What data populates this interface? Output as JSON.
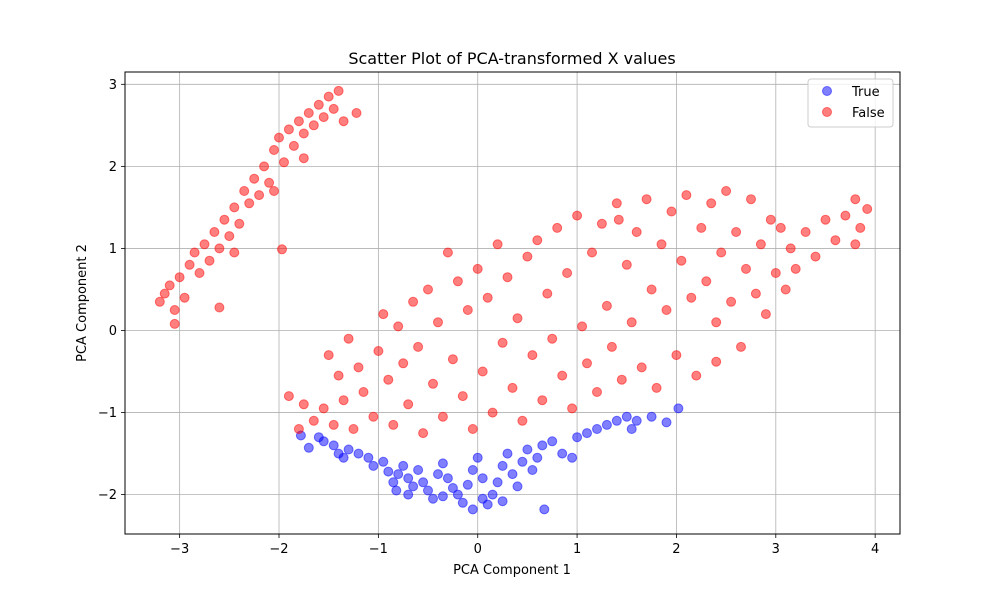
{
  "chart_data": {
    "type": "scatter",
    "title": "Scatter Plot of PCA-transformed X values",
    "xlabel": "PCA Component 1",
    "ylabel": "PCA Component 2",
    "xlim": [
      -3.55,
      4.25
    ],
    "ylim": [
      -2.48,
      3.15
    ],
    "xticks": [
      -3,
      -2,
      -1,
      0,
      1,
      2,
      3,
      4
    ],
    "yticks": [
      -2,
      -1,
      0,
      1,
      2,
      3
    ],
    "grid": true,
    "legend_position": "top-right",
    "marker_alpha": 0.5,
    "series": [
      {
        "name": "True",
        "color": "#0000ff",
        "points": [
          [
            -1.7,
            -1.43
          ],
          [
            -1.78,
            -1.28
          ],
          [
            -1.6,
            -1.3
          ],
          [
            -1.55,
            -1.35
          ],
          [
            -1.45,
            -1.4
          ],
          [
            -1.4,
            -1.5
          ],
          [
            -1.35,
            -1.55
          ],
          [
            -1.3,
            -1.45
          ],
          [
            -1.2,
            -1.5
          ],
          [
            -1.1,
            -1.55
          ],
          [
            -1.05,
            -1.65
          ],
          [
            -0.95,
            -1.6
          ],
          [
            -0.9,
            -1.72
          ],
          [
            -0.85,
            -1.85
          ],
          [
            -0.82,
            -1.95
          ],
          [
            -0.8,
            -1.75
          ],
          [
            -0.75,
            -1.65
          ],
          [
            -0.7,
            -1.8
          ],
          [
            -0.65,
            -1.9
          ],
          [
            -0.6,
            -1.7
          ],
          [
            -0.55,
            -1.85
          ],
          [
            -0.5,
            -1.95
          ],
          [
            -0.45,
            -2.05
          ],
          [
            -0.4,
            -1.75
          ],
          [
            -0.35,
            -1.62
          ],
          [
            -0.3,
            -1.8
          ],
          [
            -0.25,
            -1.92
          ],
          [
            -0.2,
            -2.0
          ],
          [
            -0.15,
            -2.1
          ],
          [
            -0.1,
            -1.88
          ],
          [
            -0.05,
            -1.7
          ],
          [
            0.0,
            -1.55
          ],
          [
            0.05,
            -1.8
          ],
          [
            0.1,
            -2.12
          ],
          [
            0.15,
            -2.0
          ],
          [
            0.2,
            -1.85
          ],
          [
            0.25,
            -1.65
          ],
          [
            0.3,
            -1.5
          ],
          [
            0.35,
            -1.75
          ],
          [
            0.4,
            -1.9
          ],
          [
            0.45,
            -1.6
          ],
          [
            0.5,
            -1.45
          ],
          [
            0.55,
            -1.7
          ],
          [
            0.6,
            -1.55
          ],
          [
            0.65,
            -1.4
          ],
          [
            0.67,
            -2.18
          ],
          [
            0.75,
            -1.35
          ],
          [
            0.85,
            -1.5
          ],
          [
            0.95,
            -1.55
          ],
          [
            1.0,
            -1.3
          ],
          [
            1.1,
            -1.25
          ],
          [
            1.2,
            -1.2
          ],
          [
            1.3,
            -1.15
          ],
          [
            1.4,
            -1.1
          ],
          [
            1.5,
            -1.05
          ],
          [
            1.6,
            -1.1
          ],
          [
            1.75,
            -1.05
          ],
          [
            1.9,
            -1.12
          ],
          [
            2.02,
            -0.95
          ],
          [
            1.55,
            -1.2
          ],
          [
            -0.7,
            -2.0
          ],
          [
            -0.35,
            -2.02
          ],
          [
            -0.05,
            -2.18
          ],
          [
            0.05,
            -2.05
          ],
          [
            0.25,
            -2.08
          ]
        ]
      },
      {
        "name": "False",
        "color": "#ff0000",
        "points": [
          [
            -3.2,
            0.35
          ],
          [
            -3.15,
            0.45
          ],
          [
            -3.1,
            0.55
          ],
          [
            -3.05,
            0.25
          ],
          [
            -3.0,
            0.65
          ],
          [
            -2.95,
            0.4
          ],
          [
            -2.9,
            0.8
          ],
          [
            -2.85,
            0.95
          ],
          [
            -2.8,
            0.7
          ],
          [
            -2.75,
            1.05
          ],
          [
            -2.7,
            0.85
          ],
          [
            -2.65,
            1.2
          ],
          [
            -2.6,
            1.0
          ],
          [
            -2.55,
            1.35
          ],
          [
            -2.5,
            1.15
          ],
          [
            -2.45,
            1.5
          ],
          [
            -2.4,
            1.3
          ],
          [
            -2.35,
            1.7
          ],
          [
            -2.3,
            1.55
          ],
          [
            -2.25,
            1.85
          ],
          [
            -2.2,
            1.65
          ],
          [
            -2.15,
            2.0
          ],
          [
            -2.1,
            1.8
          ],
          [
            -2.05,
            2.2
          ],
          [
            -2.0,
            2.35
          ],
          [
            -1.95,
            2.05
          ],
          [
            -1.9,
            2.45
          ],
          [
            -1.85,
            2.25
          ],
          [
            -1.8,
            2.55
          ],
          [
            -1.75,
            2.4
          ],
          [
            -1.7,
            2.65
          ],
          [
            -1.65,
            2.5
          ],
          [
            -1.6,
            2.75
          ],
          [
            -1.55,
            2.6
          ],
          [
            -1.5,
            2.85
          ],
          [
            -1.45,
            2.7
          ],
          [
            -1.4,
            2.92
          ],
          [
            -1.35,
            2.55
          ],
          [
            -1.22,
            2.65
          ],
          [
            -2.6,
            0.28
          ],
          [
            -3.05,
            0.08
          ],
          [
            -2.05,
            1.7
          ],
          [
            -1.75,
            2.1
          ],
          [
            -2.45,
            0.95
          ],
          [
            -1.97,
            0.99
          ],
          [
            -1.9,
            -0.8
          ],
          [
            -1.8,
            -1.2
          ],
          [
            -1.75,
            -0.9
          ],
          [
            -1.65,
            -1.1
          ],
          [
            -1.55,
            -0.95
          ],
          [
            -1.5,
            -0.3
          ],
          [
            -1.45,
            -1.15
          ],
          [
            -1.4,
            -0.55
          ],
          [
            -1.35,
            -0.85
          ],
          [
            -1.3,
            -0.1
          ],
          [
            -1.25,
            -1.2
          ],
          [
            -1.2,
            -0.45
          ],
          [
            -1.15,
            -0.75
          ],
          [
            -1.05,
            -1.05
          ],
          [
            -1.0,
            -0.25
          ],
          [
            -0.95,
            0.2
          ],
          [
            -0.9,
            -0.6
          ],
          [
            -0.85,
            -1.15
          ],
          [
            -0.8,
            0.05
          ],
          [
            -0.75,
            -0.4
          ],
          [
            -0.7,
            -0.9
          ],
          [
            -0.65,
            0.35
          ],
          [
            -0.6,
            -0.2
          ],
          [
            -0.55,
            -1.25
          ],
          [
            -0.5,
            0.5
          ],
          [
            -0.45,
            -0.65
          ],
          [
            -0.4,
            0.1
          ],
          [
            -0.35,
            -1.05
          ],
          [
            -0.3,
            0.95
          ],
          [
            -0.25,
            -0.35
          ],
          [
            -0.2,
            0.6
          ],
          [
            -0.15,
            -0.8
          ],
          [
            -0.1,
            0.25
          ],
          [
            -0.05,
            -1.2
          ],
          [
            0.0,
            0.75
          ],
          [
            0.05,
            -0.5
          ],
          [
            0.1,
            0.4
          ],
          [
            0.15,
            -1.0
          ],
          [
            0.2,
            1.05
          ],
          [
            0.25,
            -0.15
          ],
          [
            0.3,
            0.65
          ],
          [
            0.35,
            -0.7
          ],
          [
            0.4,
            0.15
          ],
          [
            0.45,
            -1.1
          ],
          [
            0.5,
            0.9
          ],
          [
            0.55,
            -0.3
          ],
          [
            0.6,
            1.1
          ],
          [
            0.65,
            -0.85
          ],
          [
            0.7,
            0.45
          ],
          [
            0.75,
            -0.1
          ],
          [
            0.8,
            1.25
          ],
          [
            0.85,
            -0.55
          ],
          [
            0.9,
            0.7
          ],
          [
            0.95,
            -0.95
          ],
          [
            1.0,
            1.4
          ],
          [
            1.05,
            0.05
          ],
          [
            1.1,
            -0.4
          ],
          [
            1.15,
            0.95
          ],
          [
            1.2,
            -0.75
          ],
          [
            1.25,
            1.3
          ],
          [
            1.3,
            0.3
          ],
          [
            1.35,
            -0.2
          ],
          [
            1.4,
            1.55
          ],
          [
            1.45,
            -0.6
          ],
          [
            1.5,
            0.8
          ],
          [
            1.55,
            0.1
          ],
          [
            1.6,
            1.2
          ],
          [
            1.65,
            -0.45
          ],
          [
            1.7,
            1.6
          ],
          [
            1.75,
            0.5
          ],
          [
            1.8,
            -0.7
          ],
          [
            1.85,
            1.05
          ],
          [
            1.9,
            0.25
          ],
          [
            1.95,
            1.45
          ],
          [
            2.0,
            -0.3
          ],
          [
            2.05,
            0.85
          ],
          [
            2.1,
            1.65
          ],
          [
            2.15,
            0.4
          ],
          [
            2.2,
            -0.55
          ],
          [
            2.25,
            1.25
          ],
          [
            2.3,
            0.6
          ],
          [
            2.35,
            1.55
          ],
          [
            2.4,
            0.1
          ],
          [
            2.45,
            0.95
          ],
          [
            2.5,
            1.7
          ],
          [
            2.55,
            0.35
          ],
          [
            2.6,
            1.2
          ],
          [
            2.65,
            -0.2
          ],
          [
            2.7,
            0.75
          ],
          [
            2.75,
            1.6
          ],
          [
            2.8,
            0.45
          ],
          [
            2.85,
            1.05
          ],
          [
            2.9,
            0.2
          ],
          [
            2.95,
            1.35
          ],
          [
            3.0,
            0.7
          ],
          [
            3.05,
            1.25
          ],
          [
            3.1,
            0.5
          ],
          [
            3.15,
            1.0
          ],
          [
            3.2,
            0.75
          ],
          [
            3.3,
            1.2
          ],
          [
            3.4,
            0.9
          ],
          [
            3.5,
            1.35
          ],
          [
            3.6,
            1.1
          ],
          [
            3.7,
            1.4
          ],
          [
            3.8,
            1.6
          ],
          [
            3.85,
            1.25
          ],
          [
            3.92,
            1.48
          ],
          [
            3.8,
            1.05
          ],
          [
            1.42,
            1.35
          ],
          [
            2.4,
            -0.38
          ]
        ]
      }
    ]
  }
}
